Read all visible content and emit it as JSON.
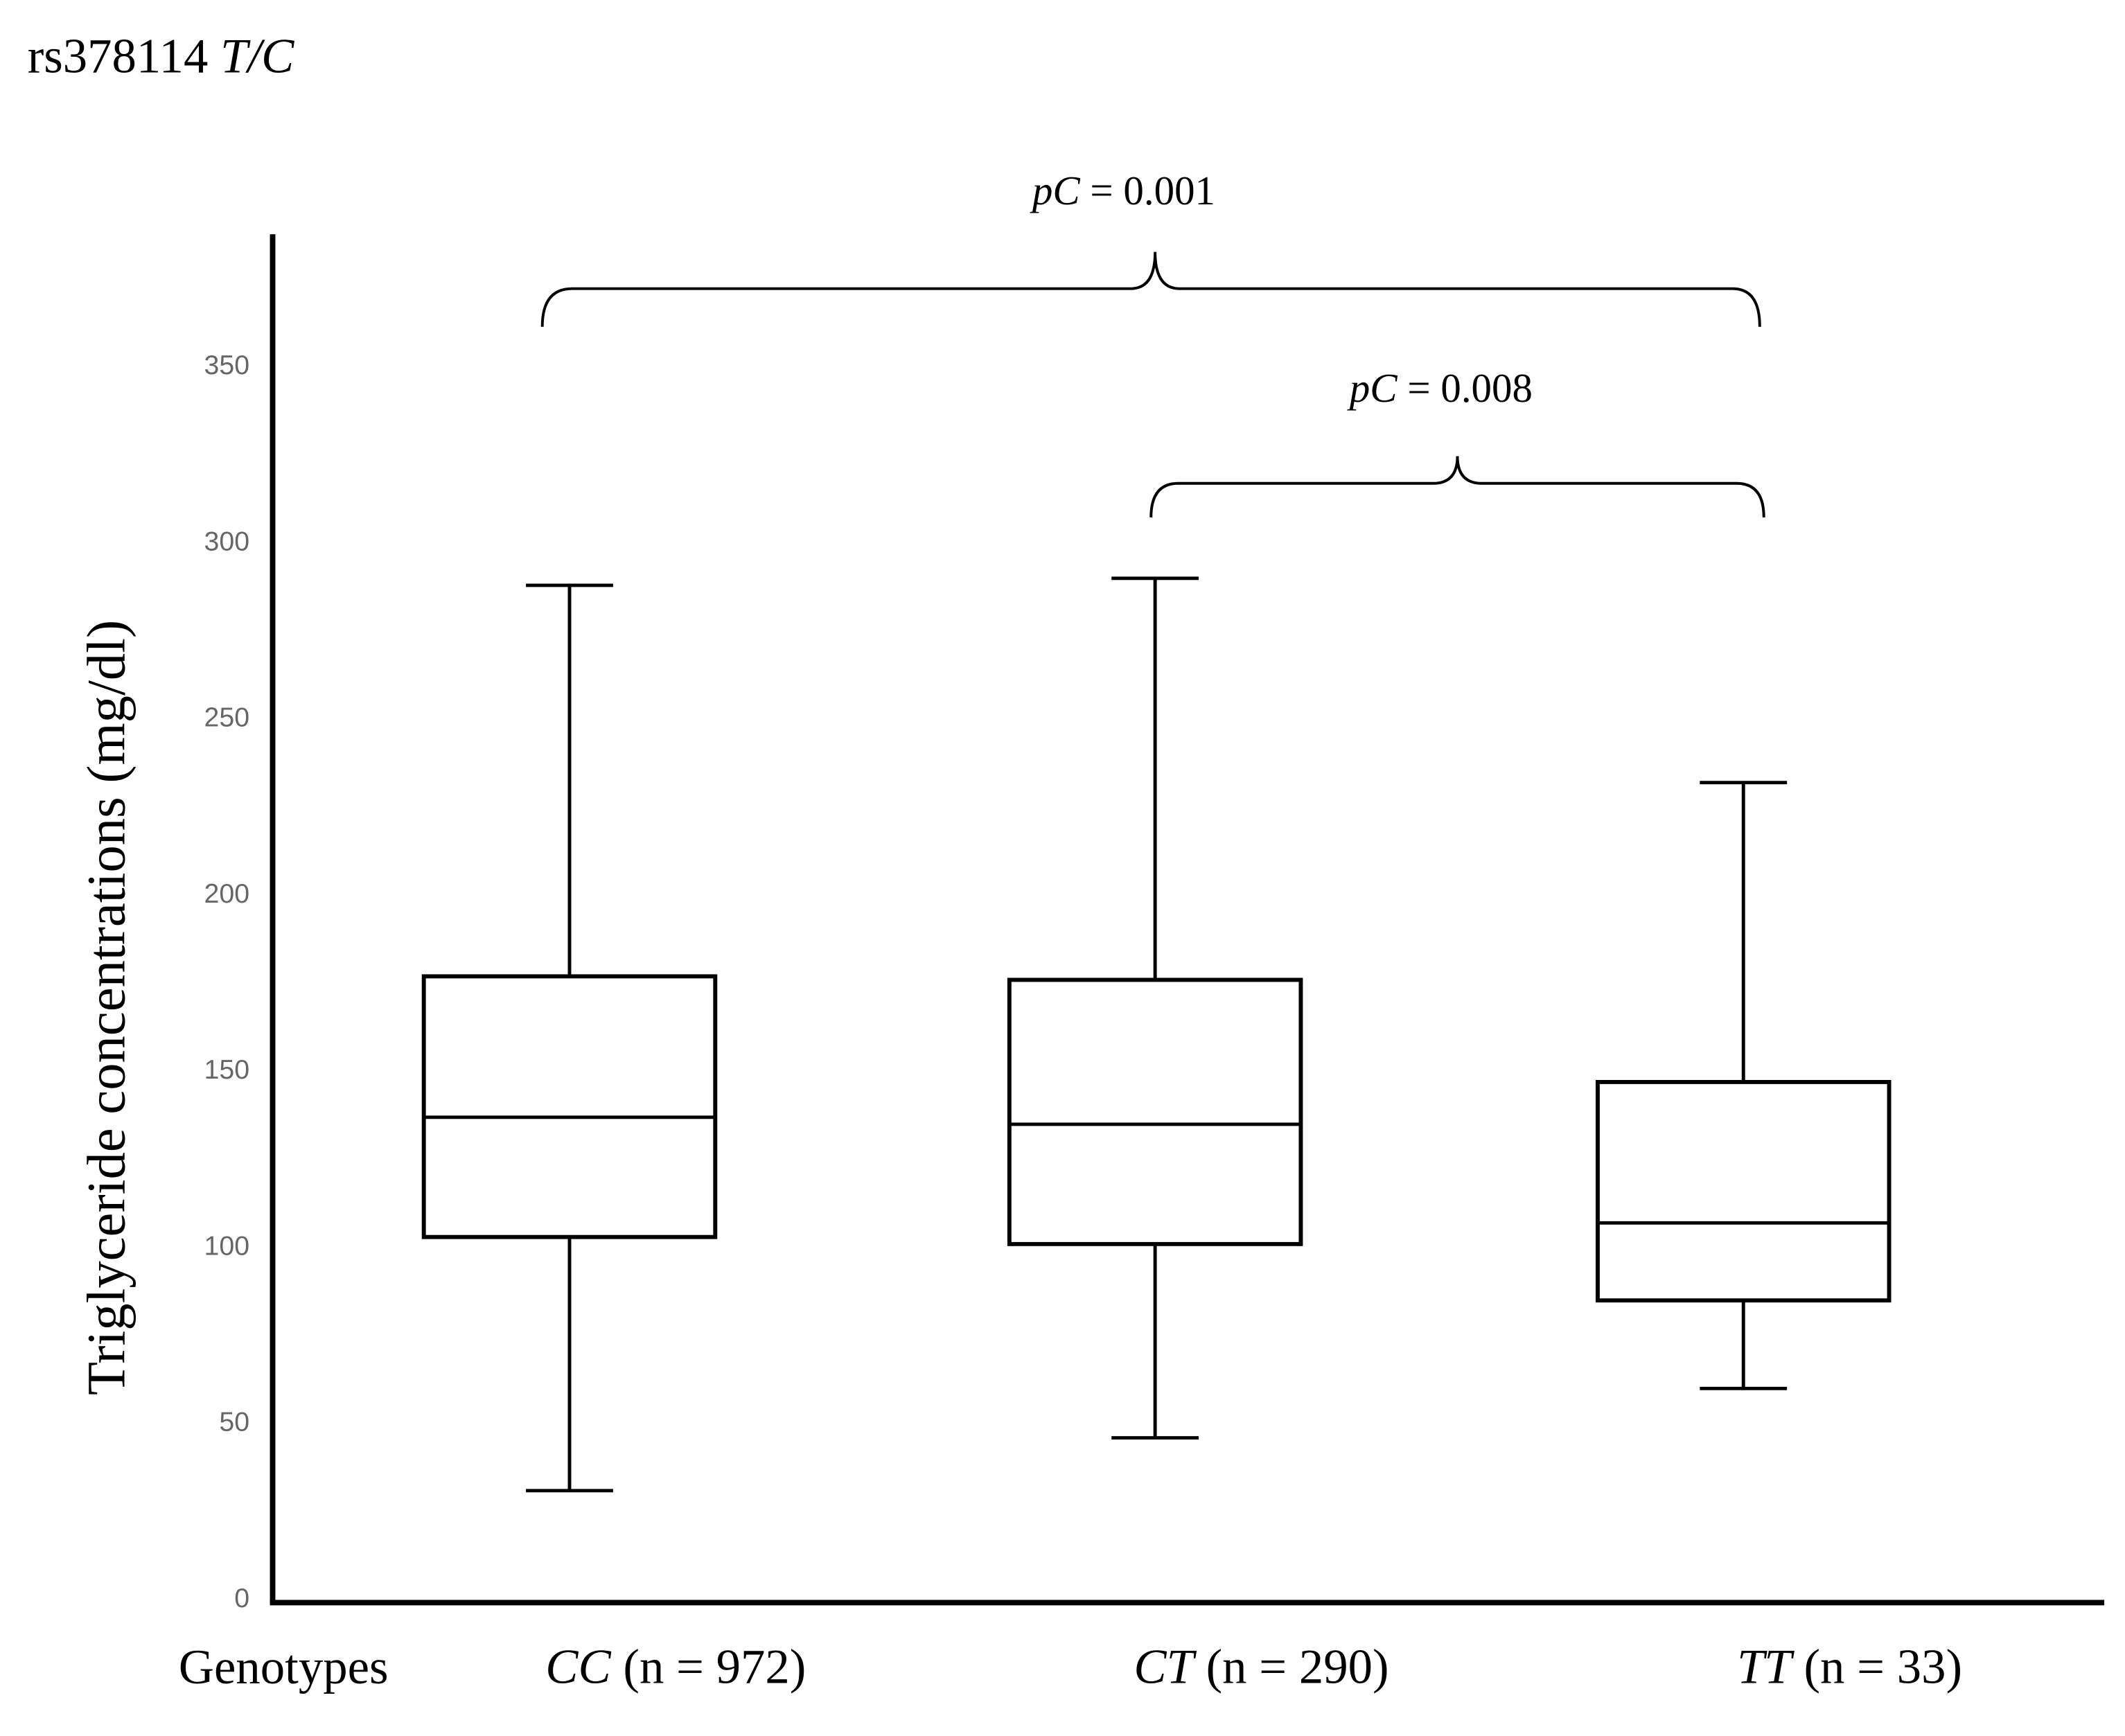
{
  "chart_data": {
    "type": "box",
    "title": {
      "text": "rs378114",
      "italic": "T/C"
    },
    "ylabel": "Triglyceride concentrations (mg/dl)",
    "xlabel": "Genotypes",
    "categories": [
      "CC",
      "CT",
      "TT"
    ],
    "sample_labels": [
      "(n = 972)",
      "(n = 290)",
      "(n = 33)"
    ],
    "whislo": [
      31,
      46,
      60
    ],
    "q1": [
      103,
      101,
      85
    ],
    "med": [
      137,
      135,
      107
    ],
    "q3": [
      177,
      176,
      147
    ],
    "whishi": [
      288,
      290,
      232
    ],
    "ylim": [
      0,
      390
    ],
    "yticks": [
      0,
      50,
      100,
      150,
      200,
      250,
      300,
      350
    ],
    "annotations": [
      {
        "prefix": "pC",
        "text": "= 0.001"
      },
      {
        "prefix": "pC",
        "text": "= 0.008"
      }
    ],
    "color": "#000000"
  }
}
